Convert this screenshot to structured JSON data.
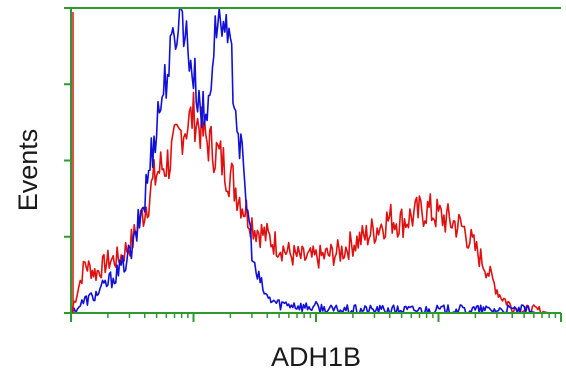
{
  "chart_data": {
    "type": "line",
    "title": "",
    "xlabel": "ADH1B",
    "ylabel": "Events",
    "xscale": "log",
    "xlim": [
      1,
      10000
    ],
    "ylim": [
      0,
      100
    ],
    "grid": false,
    "legend": "none",
    "frame_color": "#2e9a2e",
    "series": [
      {
        "color": "#e01010",
        "x": [
          1,
          1.3,
          1.6,
          2,
          2.5,
          3.2,
          4,
          5,
          6.3,
          7.9,
          10,
          12.6,
          15.8,
          20,
          25,
          31.6,
          39.8,
          50,
          63,
          79,
          100,
          126,
          158,
          200,
          251,
          316,
          398,
          501,
          631,
          794,
          1000,
          1259,
          1585,
          1995,
          2512,
          3162,
          3981,
          5012,
          6310,
          7943,
          10000
        ],
        "y": [
          0,
          16,
          13,
          17,
          18,
          24,
          34,
          46,
          50,
          59,
          65,
          57,
          52,
          45,
          36,
          28,
          25,
          22,
          19,
          18,
          18,
          19,
          20,
          23,
          25,
          28,
          31,
          30,
          32,
          34,
          32,
          30,
          28,
          21,
          14,
          6,
          2,
          1,
          1,
          0,
          0
        ]
      },
      {
        "color": "#1010d8",
        "x": [
          1,
          1.3,
          1.6,
          2,
          2.5,
          3.2,
          4,
          5,
          6.3,
          7.9,
          10,
          12.6,
          15.8,
          20,
          25,
          31.6,
          39.8,
          50,
          63,
          79,
          100,
          126,
          158,
          200,
          251,
          316,
          398,
          501,
          631,
          794,
          1000,
          1259,
          1585,
          1995,
          2512,
          3162,
          3981,
          5012,
          6310,
          7943,
          10000
        ],
        "y": [
          0,
          4,
          6,
          10,
          14,
          21,
          38,
          63,
          82,
          100,
          78,
          62,
          100,
          85,
          48,
          14,
          5,
          3,
          3,
          2,
          2,
          1,
          1,
          1,
          1,
          1,
          1,
          1,
          1,
          1,
          1,
          1,
          1,
          1,
          1,
          1,
          1,
          1,
          0,
          0,
          0
        ]
      }
    ]
  }
}
